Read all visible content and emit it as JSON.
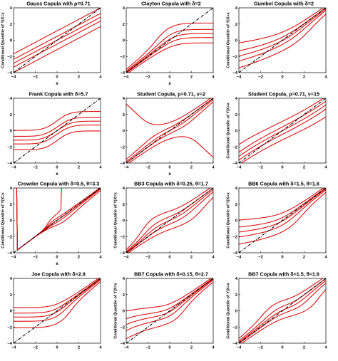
{
  "colors": {
    "quantile_curve": "#dd1111",
    "diagonal": "#000000",
    "axes": "#000000"
  },
  "chart_data": [
    {
      "type": "line",
      "title": "Gauss Copula with ρ=0.71",
      "copula": "gauss",
      "params": [
        0.71
      ],
      "xlabel": "x",
      "ylabel": "Conditional Quantile of Y|X=x",
      "xlim": [
        -4,
        4
      ],
      "ylim": [
        -4,
        4
      ],
      "xticks": [
        -4,
        -2,
        0,
        2,
        4
      ],
      "yticks": [
        -4,
        -2,
        0,
        2,
        4
      ],
      "series_quantiles": [
        0.05,
        0.25,
        0.5,
        0.75,
        0.95
      ],
      "diagonal": "y = x (dash-dot)",
      "grid": false
    },
    {
      "type": "line",
      "title": "Clayton Copula with δ=2",
      "copula": "clayton",
      "params": [
        2
      ],
      "xlabel": "x",
      "ylabel": "",
      "xlim": [
        -4,
        4
      ],
      "ylim": [
        -4,
        4
      ],
      "xticks": [
        -4,
        -2,
        0,
        2,
        4
      ],
      "yticks": [
        -4,
        -2,
        0,
        2,
        4
      ],
      "series_quantiles": [
        0.05,
        0.25,
        0.5,
        0.75,
        0.95
      ],
      "diagonal": "y = x (dash-dot)",
      "grid": false
    },
    {
      "type": "line",
      "title": "Gumbel Copula with δ=2",
      "copula": "gumbel",
      "params": [
        2
      ],
      "xlabel": "",
      "ylabel": "Conditional Quantile of Y|X=x",
      "xlim": [
        -4,
        4
      ],
      "ylim": [
        -4,
        4
      ],
      "xticks": [
        -4,
        -2,
        0,
        2,
        4
      ],
      "yticks": [
        -4,
        -2,
        0,
        2,
        4
      ],
      "series_quantiles": [
        0.05,
        0.25,
        0.5,
        0.75,
        0.95
      ],
      "diagonal": "y = x (dash-dot)",
      "grid": false
    },
    {
      "type": "line",
      "title": "Frank Copula with δ=5.7",
      "copula": "frank",
      "params": [
        5.7
      ],
      "xlabel": "x",
      "ylabel": "",
      "xlim": [
        -4,
        4
      ],
      "ylim": [
        -4,
        4
      ],
      "xticks": [
        -4,
        -2,
        0,
        2,
        4
      ],
      "yticks": [
        -4,
        -2,
        0,
        2,
        4
      ],
      "series_quantiles": [
        0.05,
        0.25,
        0.5,
        0.75,
        0.95
      ],
      "diagonal": "y = x (dash-dot)",
      "grid": false
    },
    {
      "type": "line",
      "title": "Student Copula, ρ=0.71, ν=2",
      "copula": "student",
      "params": [
        0.71,
        2
      ],
      "xlabel": "x",
      "ylabel": "",
      "xlim": [
        -4,
        4
      ],
      "ylim": [
        -4,
        4
      ],
      "xticks": [
        -4,
        -2,
        0,
        2,
        4
      ],
      "yticks": [
        -4,
        -2,
        0,
        2,
        4
      ],
      "series_quantiles": [
        0.05,
        0.25,
        0.5,
        0.75,
        0.95
      ],
      "diagonal": "y = x (dash-dot)",
      "grid": false
    },
    {
      "type": "line",
      "title": "Student Copula, ρ=0.71, ν=15",
      "copula": "student",
      "params": [
        0.71,
        15
      ],
      "xlabel": "",
      "ylabel": "Conditional Quantile of Y|X=x",
      "xlim": [
        -4,
        4
      ],
      "ylim": [
        -4,
        4
      ],
      "xticks": [
        -4,
        -2,
        0,
        2,
        4
      ],
      "yticks": [
        -4,
        -2,
        0,
        2,
        4
      ],
      "series_quantiles": [
        0.05,
        0.25,
        0.5,
        0.75,
        0.95
      ],
      "diagonal": "y = x (dash-dot)",
      "grid": false
    },
    {
      "type": "line",
      "title": "Crowder Copula with δ=0.5, θ=3.3",
      "copula": "crowder",
      "params": [
        0.5,
        3.3
      ],
      "xlabel": "x",
      "ylabel": "Conditional Quantile of Y|X=x",
      "xlim": [
        -4,
        4
      ],
      "ylim": [
        -4,
        4
      ],
      "xticks": [
        -4,
        -2,
        0,
        2,
        4
      ],
      "yticks": [
        -4,
        -2,
        0,
        2,
        4
      ],
      "series_quantiles": [
        0.05,
        0.25,
        0.5,
        0.75,
        0.95
      ],
      "diagonal": "y = x (dash-dot)",
      "grid": false
    },
    {
      "type": "line",
      "title": "BB3 Copula with δ=0.25, θ=1.7",
      "copula": "bb3",
      "params": [
        0.25,
        1.7
      ],
      "xlabel": "",
      "ylabel": "Conditional Quantile of Y|X=x",
      "xlim": [
        -4,
        4
      ],
      "ylim": [
        -4,
        4
      ],
      "xticks": [
        -4,
        -2,
        0,
        2,
        4
      ],
      "yticks": [
        -4,
        -2,
        0,
        2,
        4
      ],
      "series_quantiles": [
        0.05,
        0.25,
        0.5,
        0.75,
        0.95
      ],
      "diagonal": "y = x (dash-dot)",
      "grid": false
    },
    {
      "type": "line",
      "title": "BB6 Copula with δ=1.5, θ=1.6",
      "copula": "bb6",
      "params": [
        1.5,
        1.6
      ],
      "xlabel": "",
      "ylabel": "Conditional Quantile of Y|X=x",
      "xlim": [
        -4,
        4
      ],
      "ylim": [
        -4,
        4
      ],
      "xticks": [
        -4,
        -2,
        0,
        2,
        4
      ],
      "yticks": [
        -4,
        -2,
        0,
        2,
        4
      ],
      "series_quantiles": [
        0.05,
        0.25,
        0.5,
        0.75,
        0.95
      ],
      "diagonal": "y = x (dash-dot)",
      "grid": false
    },
    {
      "type": "line",
      "title": "Joe Copula with δ=2.8",
      "copula": "joe",
      "params": [
        2.8
      ],
      "xlabel": "",
      "ylabel": "",
      "xlim": [
        -4,
        4
      ],
      "ylim": [
        -4,
        4
      ],
      "xticks": [
        -4,
        -2,
        0,
        2,
        4
      ],
      "yticks": [
        -4,
        -2,
        0,
        2,
        4
      ],
      "series_quantiles": [
        0.05,
        0.25,
        0.5,
        0.75,
        0.95
      ],
      "diagonal": "y = x (dash-dot)",
      "grid": false
    },
    {
      "type": "line",
      "title": "BB7 Copula with δ=0.15, θ=2.7",
      "copula": "bb7",
      "params": [
        0.15,
        2.7
      ],
      "xlabel": "",
      "ylabel": "Conditional Quantile of Y|X=x",
      "xlim": [
        -4,
        4
      ],
      "ylim": [
        -4,
        4
      ],
      "xticks": [
        -4,
        -2,
        0,
        2,
        4
      ],
      "yticks": [
        -4,
        -2,
        0,
        2,
        4
      ],
      "series_quantiles": [
        0.05,
        0.25,
        0.5,
        0.75,
        0.95
      ],
      "diagonal": "y = x (dash-dot)",
      "grid": false
    },
    {
      "type": "line",
      "title": "BB7 Copula with δ=1.5, θ=1.6",
      "copula": "bb7",
      "params": [
        1.5,
        1.6
      ],
      "xlabel": "",
      "ylabel": "Conditional Quantile of Y|X=x",
      "xlim": [
        -4,
        4
      ],
      "ylim": [
        -4,
        4
      ],
      "xticks": [
        -4,
        -2,
        0,
        2,
        4
      ],
      "yticks": [
        -4,
        -2,
        0,
        2,
        4
      ],
      "series_quantiles": [
        0.05,
        0.25,
        0.5,
        0.75,
        0.95
      ],
      "diagonal": "y = x (dash-dot)",
      "grid": false
    }
  ]
}
